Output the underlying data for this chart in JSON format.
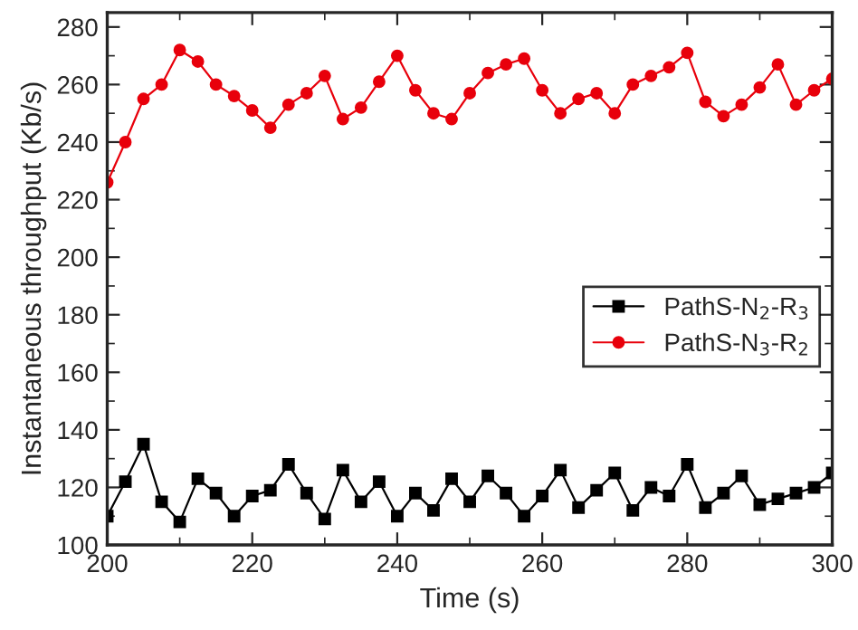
{
  "chart_data": {
    "type": "line",
    "xlabel": "Time (s)",
    "ylabel": "Instantaneous throughput (Kb/s)",
    "xlim": [
      200,
      300
    ],
    "xticks": [
      200,
      220,
      240,
      260,
      280,
      300
    ],
    "ylim": [
      100,
      285
    ],
    "yticks": [
      100,
      120,
      140,
      160,
      180,
      200,
      220,
      240,
      260,
      280
    ],
    "grid": false,
    "legend": "right",
    "series": [
      {
        "name": "PathS-N$_{2}$-R$_{3}$",
        "color": "#000000",
        "marker": "square",
        "x": [
          200,
          202.5,
          205,
          207.5,
          210,
          212.5,
          215,
          217.5,
          220,
          222.5,
          225,
          227.5,
          230,
          232.5,
          235,
          237.5,
          240,
          242.5,
          245,
          247.5,
          250,
          252.5,
          255,
          257.5,
          260,
          262.5,
          265,
          267.5,
          270,
          272.5,
          275,
          277.5,
          280,
          282.5,
          285,
          287.5,
          290,
          292.5,
          295,
          297.5,
          300
        ],
        "values": [
          110,
          122,
          135,
          115,
          108,
          123,
          118,
          110,
          117,
          119,
          128,
          118,
          109,
          126,
          115,
          122,
          110,
          118,
          112,
          123,
          115,
          124,
          118,
          110,
          117,
          126,
          113,
          119,
          125,
          112,
          120,
          117,
          128,
          113,
          118,
          124,
          114,
          116,
          118,
          120,
          125
        ]
      },
      {
        "name": "PathS-N$_{3}$-R$_{2}$",
        "color": "#e8000b",
        "marker": "circle",
        "x": [
          200,
          202.5,
          205,
          207.5,
          210,
          212.5,
          215,
          217.5,
          220,
          222.5,
          225,
          227.5,
          230,
          232.5,
          235,
          237.5,
          240,
          242.5,
          245,
          247.5,
          250,
          252.5,
          255,
          257.5,
          260,
          262.5,
          265,
          267.5,
          270,
          272.5,
          275,
          277.5,
          280,
          282.5,
          285,
          287.5,
          290,
          292.5,
          295,
          297.5,
          300
        ],
        "values": [
          226,
          240,
          255,
          260,
          272,
          268,
          260,
          256,
          251,
          245,
          253,
          257,
          263,
          248,
          252,
          261,
          270,
          258,
          250,
          248,
          257,
          264,
          267,
          269,
          258,
          250,
          255,
          257,
          250,
          260,
          263,
          266,
          271,
          254,
          249,
          253,
          259,
          267,
          253,
          258,
          262
        ]
      }
    ]
  }
}
